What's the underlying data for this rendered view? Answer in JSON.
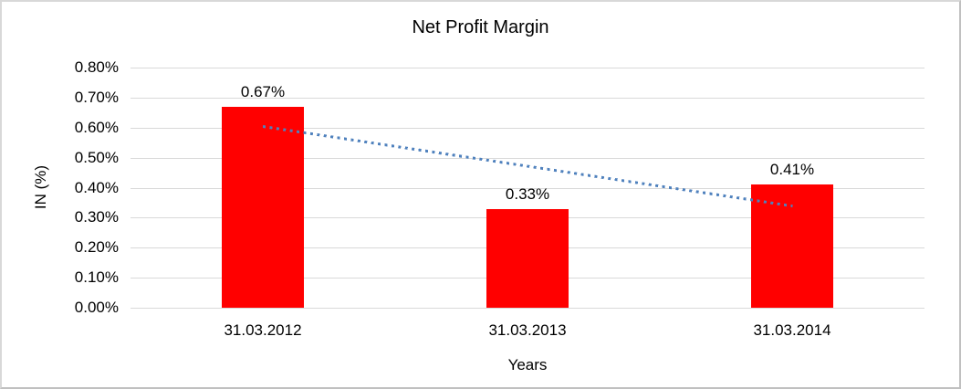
{
  "chart_data": {
    "type": "bar",
    "title": "Net Profit Margin",
    "xlabel": "Years",
    "ylabel": "IN (%)",
    "categories": [
      "31.03.2012",
      "31.03.2013",
      "31.03.2014"
    ],
    "series": [
      {
        "name": "Net Profit Margin",
        "values": [
          0.67,
          0.33,
          0.41
        ]
      }
    ],
    "data_labels": [
      "0.67%",
      "0.33%",
      "0.41%"
    ],
    "ylim": [
      0,
      0.8
    ],
    "y_ticks": [
      "0.00%",
      "0.10%",
      "0.20%",
      "0.30%",
      "0.40%",
      "0.50%",
      "0.60%",
      "0.70%",
      "0.80%"
    ],
    "grid": true,
    "legend": false,
    "bar_color": "#ff0000",
    "gridline_color": "#d9d9d9",
    "text_color": "#000000",
    "trendline": {
      "type": "linear",
      "style": "dotted",
      "color": "#4f81bd",
      "start_value": 0.605,
      "end_value": 0.34
    }
  }
}
